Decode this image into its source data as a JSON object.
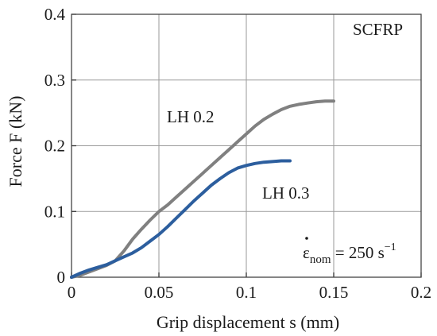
{
  "chart_data": {
    "type": "line",
    "title": "",
    "xlabel": "Grip displacement s (mm)",
    "ylabel": "Force F (kN)",
    "xlim": [
      0,
      0.2
    ],
    "ylim": [
      0,
      0.4
    ],
    "xticks": [
      0,
      0.05,
      0.1,
      0.15,
      0.2
    ],
    "yticks": [
      0,
      0.1,
      0.2,
      0.3,
      0.4
    ],
    "xtick_labels": [
      "0",
      "0.05",
      "0.1",
      "0.15",
      "0.2"
    ],
    "ytick_labels": [
      "0",
      "0.1",
      "0.2",
      "0.3",
      "0.4"
    ],
    "grid": true,
    "material_label": "SCFRP",
    "strain_rate_label": {
      "symbol": "ε",
      "subscript": "nom",
      "equals_text": " = 250 s",
      "exponent": "−1"
    },
    "series": [
      {
        "name": "LH 0.2",
        "color": "#808080",
        "x": [
          0,
          0.005,
          0.01,
          0.015,
          0.02,
          0.025,
          0.03,
          0.035,
          0.04,
          0.045,
          0.05,
          0.055,
          0.06,
          0.065,
          0.07,
          0.075,
          0.08,
          0.085,
          0.09,
          0.095,
          0.1,
          0.105,
          0.11,
          0.115,
          0.12,
          0.125,
          0.13,
          0.135,
          0.14,
          0.145,
          0.15
        ],
        "y": [
          0,
          0.003,
          0.008,
          0.013,
          0.018,
          0.025,
          0.04,
          0.058,
          0.073,
          0.087,
          0.1,
          0.11,
          0.122,
          0.134,
          0.146,
          0.158,
          0.17,
          0.182,
          0.194,
          0.206,
          0.218,
          0.23,
          0.24,
          0.248,
          0.255,
          0.26,
          0.263,
          0.265,
          0.267,
          0.268,
          0.268
        ]
      },
      {
        "name": "LH 0.3",
        "color": "#2c5e9e",
        "x": [
          0,
          0.005,
          0.01,
          0.015,
          0.02,
          0.025,
          0.03,
          0.035,
          0.04,
          0.045,
          0.05,
          0.055,
          0.06,
          0.065,
          0.07,
          0.075,
          0.08,
          0.085,
          0.09,
          0.095,
          0.1,
          0.105,
          0.11,
          0.115,
          0.12,
          0.125
        ],
        "y": [
          0,
          0.006,
          0.011,
          0.015,
          0.019,
          0.025,
          0.031,
          0.037,
          0.045,
          0.055,
          0.065,
          0.077,
          0.09,
          0.103,
          0.116,
          0.128,
          0.14,
          0.15,
          0.159,
          0.166,
          0.17,
          0.173,
          0.175,
          0.176,
          0.177,
          0.177
        ]
      }
    ]
  }
}
